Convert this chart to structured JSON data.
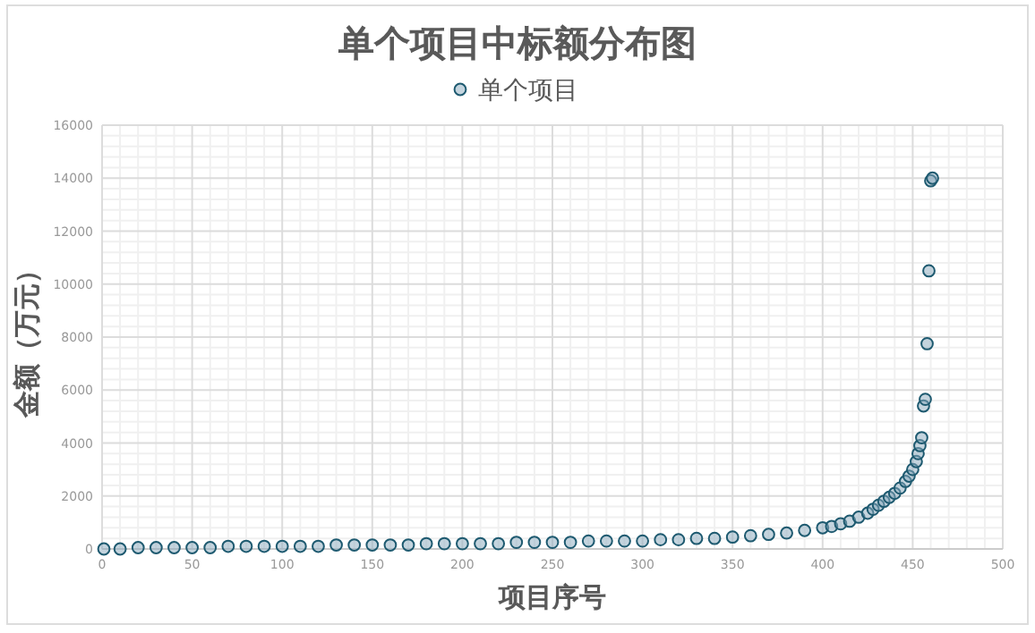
{
  "chart_data": {
    "type": "scatter",
    "title": "单个项目中标额分布图",
    "xlabel": "项目序号",
    "ylabel": "金额（万元）",
    "xlim": [
      0,
      500
    ],
    "xticks": [
      0,
      50,
      100,
      150,
      200,
      250,
      300,
      350,
      400,
      450,
      500
    ],
    "ylim": [
      0,
      16000
    ],
    "yticks": [
      0,
      2000,
      4000,
      6000,
      8000,
      10000,
      12000,
      14000,
      16000
    ],
    "grid": true,
    "legend": "top",
    "marker": "circle",
    "series": [
      {
        "name": "单个项目",
        "color": "#1e5a70",
        "x": [
          1,
          10,
          20,
          30,
          40,
          50,
          60,
          70,
          80,
          90,
          100,
          110,
          120,
          130,
          140,
          150,
          160,
          170,
          180,
          190,
          200,
          210,
          220,
          230,
          240,
          250,
          260,
          270,
          280,
          290,
          300,
          310,
          320,
          330,
          340,
          350,
          360,
          370,
          380,
          390,
          400,
          405,
          410,
          415,
          420,
          425,
          428,
          431,
          434,
          437,
          440,
          443,
          446,
          448,
          450,
          452,
          453,
          454,
          455,
          456,
          457,
          458,
          459,
          460,
          461
        ],
        "values": [
          0,
          0,
          50,
          50,
          50,
          50,
          50,
          100,
          100,
          100,
          100,
          100,
          100,
          150,
          150,
          150,
          150,
          150,
          200,
          200,
          200,
          200,
          200,
          250,
          250,
          250,
          250,
          300,
          300,
          300,
          300,
          350,
          350,
          400,
          400,
          450,
          500,
          550,
          600,
          700,
          800,
          850,
          950,
          1050,
          1200,
          1350,
          1500,
          1650,
          1800,
          1950,
          2100,
          2300,
          2550,
          2750,
          3000,
          3300,
          3600,
          3900,
          4200,
          5400,
          5650,
          7750,
          10500,
          13900,
          14000
        ]
      }
    ]
  }
}
